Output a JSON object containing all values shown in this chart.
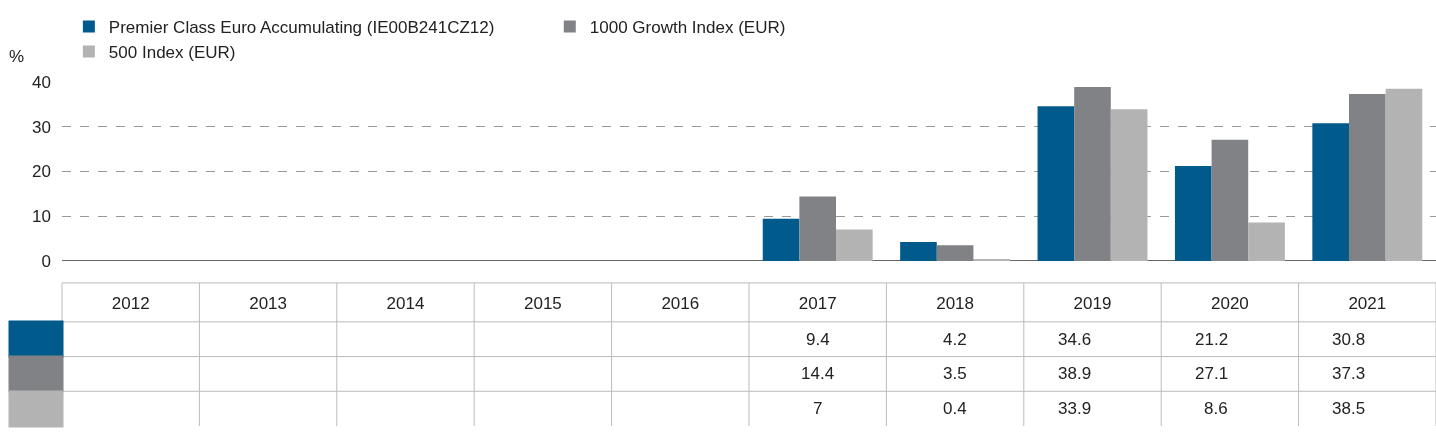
{
  "chart_data": {
    "type": "bar",
    "ylabel": "%",
    "categories": [
      "2012",
      "2013",
      "2014",
      "2015",
      "2016",
      "2017",
      "2018",
      "2019",
      "2020",
      "2021"
    ],
    "series": [
      {
        "name": "Premier Class Euro Accumulating (IE00B241CZ12)",
        "color": "#005a8c",
        "values": [
          null,
          null,
          null,
          null,
          null,
          9.4,
          4.2,
          34.6,
          21.2,
          30.8
        ]
      },
      {
        "name": "1000 Growth Index (EUR)",
        "color": "#808285",
        "values": [
          null,
          null,
          null,
          null,
          null,
          14.4,
          3.5,
          38.9,
          27.1,
          37.3
        ]
      },
      {
        "name": "500 Index (EUR)",
        "color": "#b3b3b3",
        "values": [
          null,
          null,
          null,
          null,
          null,
          7,
          0.4,
          33.9,
          8.6,
          38.5
        ]
      }
    ],
    "ylim": [
      0,
      40
    ],
    "yticks": [
      0,
      10,
      20,
      30,
      40
    ],
    "grid": "y",
    "legend": "top left",
    "data_labels": true
  }
}
